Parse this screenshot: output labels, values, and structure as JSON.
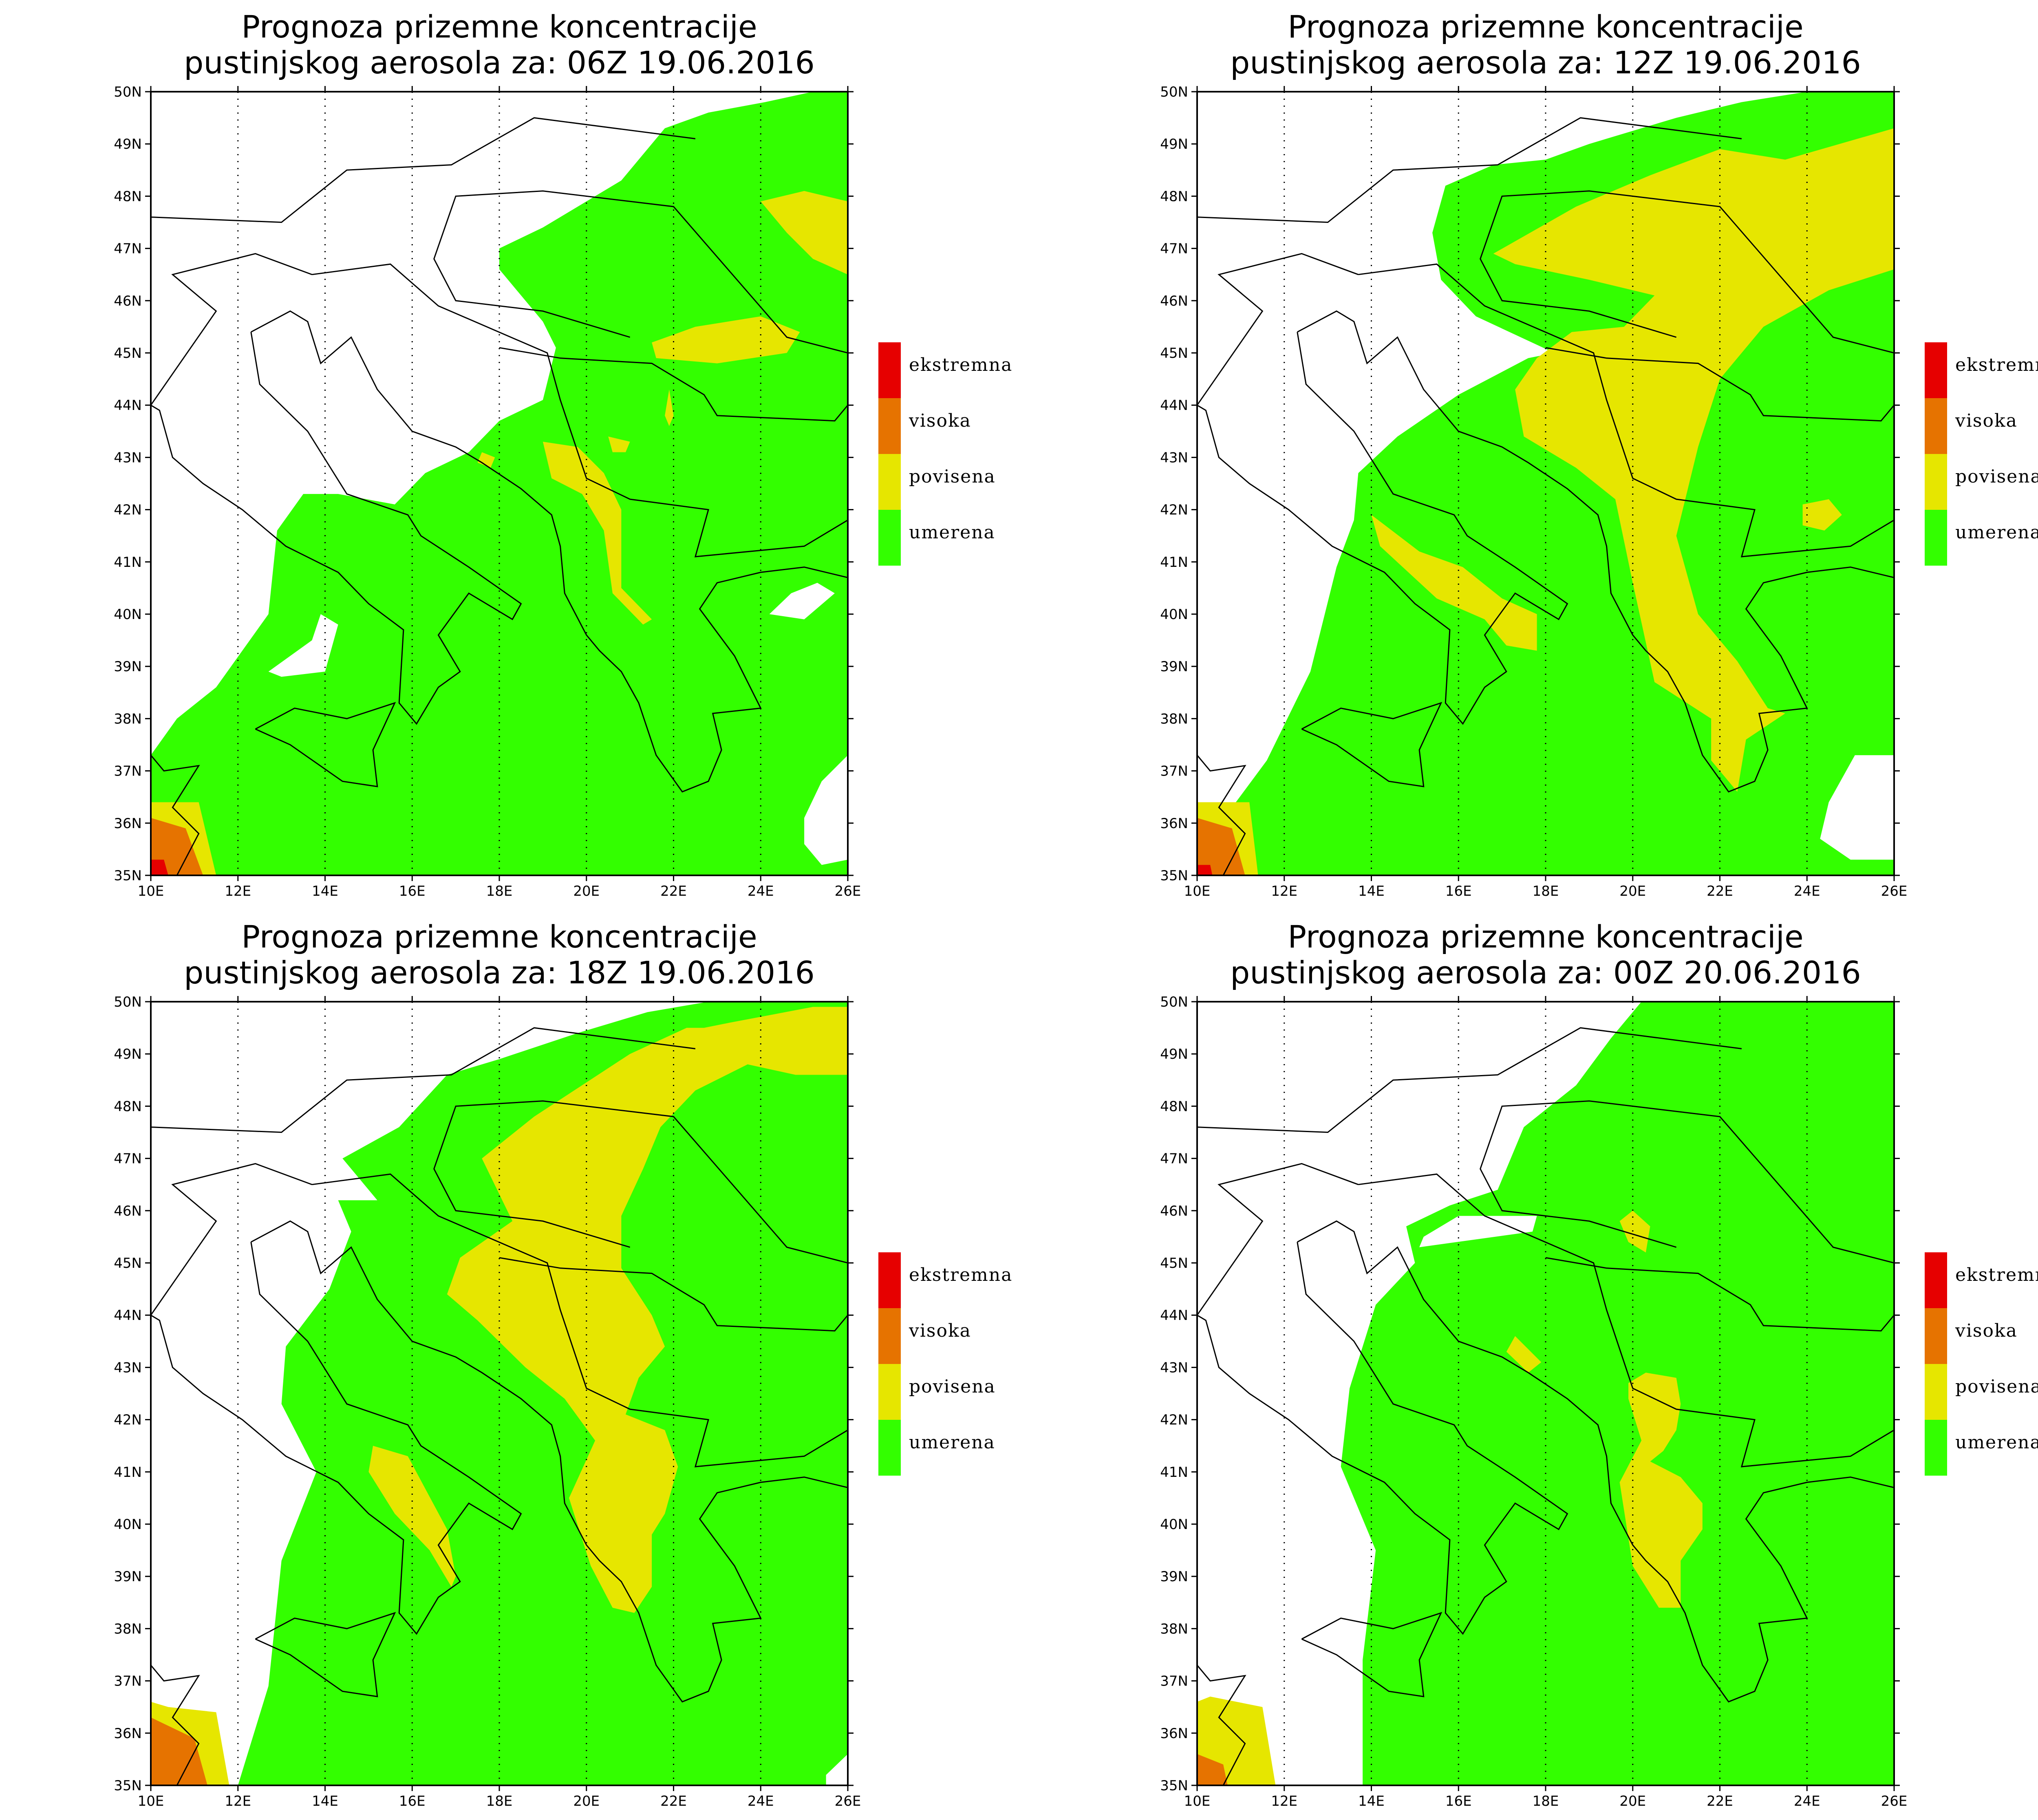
{
  "colors": {
    "umerena": "#33ff00",
    "povisena": "#e6e600",
    "visoka": "#e67300",
    "ekstremna": "#e60000",
    "background": "#ffffff",
    "coast": "#000000"
  },
  "axes": {
    "lat_labels": [
      "50N",
      "49N",
      "48N",
      "47N",
      "46N",
      "45N",
      "44N",
      "43N",
      "42N",
      "41N",
      "40N",
      "39N",
      "38N",
      "37N",
      "36N",
      "35N"
    ],
    "lon_labels": [
      "10E",
      "12E",
      "14E",
      "16E",
      "18E",
      "20E",
      "22E",
      "24E",
      "26E"
    ],
    "lat_range": [
      35,
      50
    ],
    "lon_range": [
      10,
      26
    ]
  },
  "legend": [
    {
      "label": "ekstremna",
      "color": "#e60000"
    },
    {
      "label": "visoka",
      "color": "#e67300"
    },
    {
      "label": "povisena",
      "color": "#e6e600"
    },
    {
      "label": "umerena",
      "color": "#33ff00"
    }
  ],
  "panels": [
    {
      "title_line1": "Prognoza prizemne koncentracije",
      "title_line2": "pustinjskog aerosola za: 06Z 19.06.2016"
    },
    {
      "title_line1": "Prognoza prizemne koncentracije",
      "title_line2": "pustinjskog aerosola za: 12Z 19.06.2016"
    },
    {
      "title_line1": "Prognoza prizemne koncentracije",
      "title_line2": "pustinjskog aerosola za: 18Z 19.06.2016"
    },
    {
      "title_line1": "Prognoza prizemne koncentracije",
      "title_line2": "pustinjskog aerosola za: 00Z 20.06.2016"
    }
  ]
}
